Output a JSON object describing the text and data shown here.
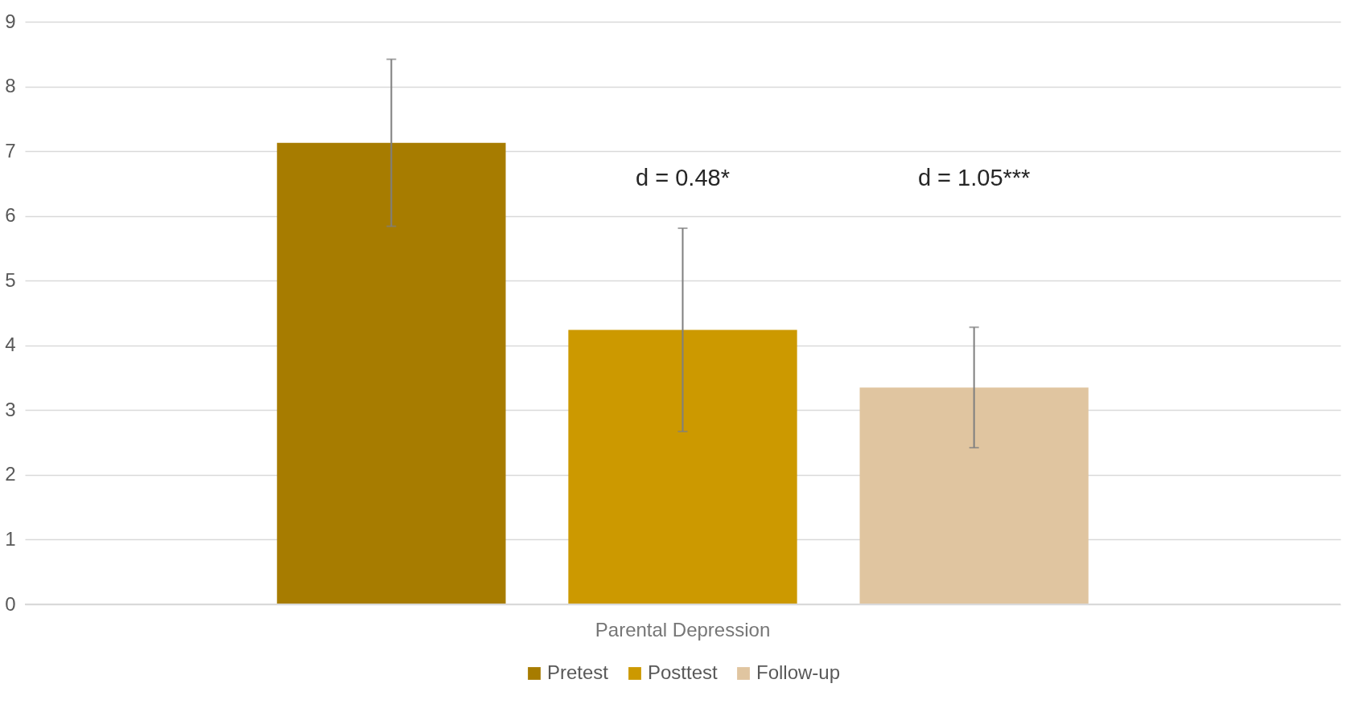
{
  "chart_data": {
    "type": "bar",
    "categories": [
      "Parental Depression"
    ],
    "series": [
      {
        "name": "Pretest",
        "color": "#a77c00",
        "values": [
          7.13
        ],
        "errors": [
          1.29
        ]
      },
      {
        "name": "Posttest",
        "color": "#cc9900",
        "values": [
          4.24
        ],
        "errors": [
          1.57
        ]
      },
      {
        "name": "Follow-up",
        "color": "#e0c5a0",
        "values": [
          3.35
        ],
        "errors": [
          0.93
        ]
      }
    ],
    "ylim": [
      0,
      9
    ],
    "yticks": [
      0,
      1,
      2,
      3,
      4,
      5,
      6,
      7,
      8,
      9
    ],
    "grid": "y",
    "legend": "bottom",
    "annotations": [
      "d = 0.48*",
      "d = 1.05***"
    ]
  }
}
